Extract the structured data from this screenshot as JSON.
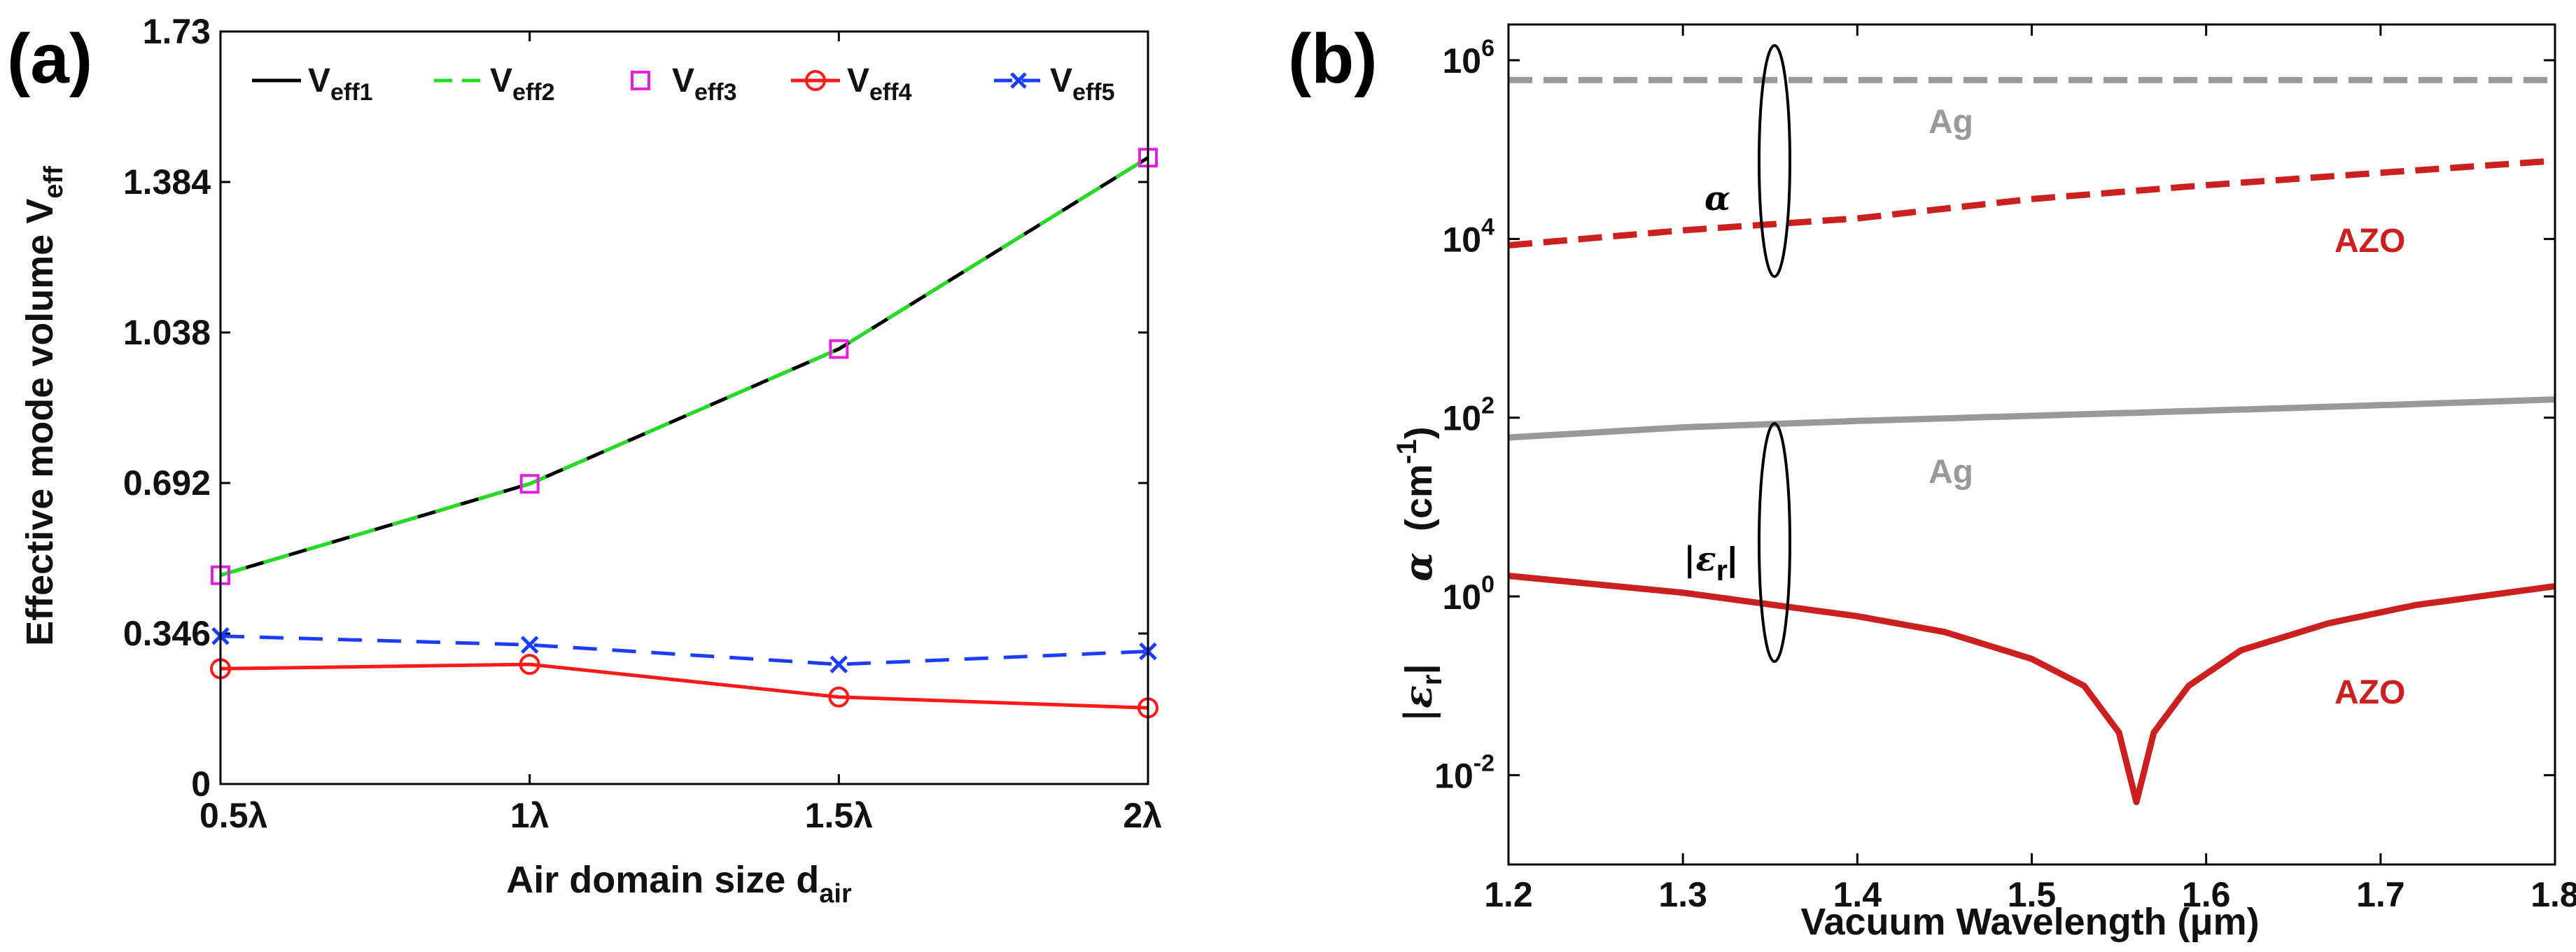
{
  "chart_data": [
    {
      "panel_label": "(a)",
      "type": "line",
      "xlabel": "Air domain size d",
      "xlabel_sub": "air",
      "ylabel": "Effective mode volume V",
      "ylabel_sub": "eff",
      "categories": [
        "0.5λ",
        "1λ",
        "1.5λ",
        "2λ"
      ],
      "x": [
        0.5,
        1.0,
        1.5,
        2.0
      ],
      "xlim": [
        0.5,
        2.0
      ],
      "ylim": [
        0,
        1.73
      ],
      "yticks": [
        0,
        0.346,
        0.692,
        1.038,
        1.384,
        1.73
      ],
      "ytick_labels": [
        "0",
        "0.346",
        "0.692",
        "1.038",
        "1.384",
        "1.73"
      ],
      "series": [
        {
          "name": "V",
          "sub": "eff1",
          "color": "#000000",
          "style": "solid",
          "marker": "none",
          "values": [
            0.48,
            0.69,
            1.0,
            1.44
          ]
        },
        {
          "name": "V",
          "sub": "eff2",
          "color": "#22dd22",
          "style": "dashed",
          "marker": "none",
          "values": [
            0.48,
            0.69,
            1.0,
            1.44
          ]
        },
        {
          "name": "V",
          "sub": "eff3",
          "color": "#e020e0",
          "style": "none",
          "marker": "square",
          "values": [
            0.48,
            0.69,
            1.0,
            1.44
          ]
        },
        {
          "name": "V",
          "sub": "eff4",
          "color": "#ff1a1a",
          "style": "solid",
          "marker": "circle",
          "values": [
            0.265,
            0.275,
            0.2,
            0.175
          ]
        },
        {
          "name": "V",
          "sub": "eff5",
          "color": "#1a3dff",
          "style": "dashed",
          "marker": "x",
          "values": [
            0.34,
            0.32,
            0.275,
            0.305
          ]
        }
      ]
    },
    {
      "panel_label": "(b)",
      "type": "line",
      "yscale": "log",
      "xlabel": "Vacuum Wavelength (μm)",
      "ylabel_alpha": "α",
      "ylabel_alpha_unit": "(cm",
      "ylabel_alpha_exp": "-1",
      "ylabel_eps": "|ε",
      "ylabel_eps_sub": "r",
      "xlim": [
        1.2,
        1.8
      ],
      "xticks": [
        1.2,
        1.3,
        1.4,
        1.5,
        1.6,
        1.7,
        1.8
      ],
      "xtick_labels": [
        "1.2",
        "1.3",
        "1.4",
        "1.5",
        "1.6",
        "1.7",
        "1.8"
      ],
      "ylim_log10": [
        -3,
        6.4
      ],
      "yticks_log10": [
        -2,
        0,
        2,
        4,
        6
      ],
      "ytick_base": "10",
      "ytick_exps": [
        "-2",
        "0",
        "2",
        "4",
        "6"
      ],
      "series": [
        {
          "name": "α Ag",
          "label": "Ag",
          "color": "#999999",
          "style": "dashed",
          "x": [
            1.2,
            1.8
          ],
          "values": [
            600000,
            600000
          ]
        },
        {
          "name": "α AZO",
          "label": "AZO",
          "color": "#cc2020",
          "style": "dashed",
          "x": [
            1.2,
            1.3,
            1.4,
            1.5,
            1.6,
            1.7,
            1.8
          ],
          "values": [
            8500,
            12500,
            17000,
            28000,
            40000,
            55000,
            75000
          ]
        },
        {
          "name": "|εr| Ag",
          "label": "Ag",
          "color": "#999999",
          "style": "solid",
          "x": [
            1.2,
            1.3,
            1.4,
            1.5,
            1.6,
            1.7,
            1.8
          ],
          "values": [
            60,
            78,
            92,
            105,
            120,
            138,
            160
          ]
        },
        {
          "name": "|εr| AZO",
          "label": "AZO",
          "color": "#cc2020",
          "style": "solid",
          "x": [
            1.2,
            1.3,
            1.4,
            1.45,
            1.5,
            1.53,
            1.55,
            1.56,
            1.57,
            1.59,
            1.62,
            1.67,
            1.72,
            1.8
          ],
          "values": [
            1.7,
            1.1,
            0.6,
            0.4,
            0.2,
            0.1,
            0.03,
            0.005,
            0.03,
            0.1,
            0.25,
            0.5,
            0.8,
            1.3
          ]
        }
      ],
      "annotations": {
        "alpha_symbol": "α",
        "eps_symbol": "|ε",
        "eps_sub": "r",
        "eps_close": "|"
      }
    }
  ]
}
